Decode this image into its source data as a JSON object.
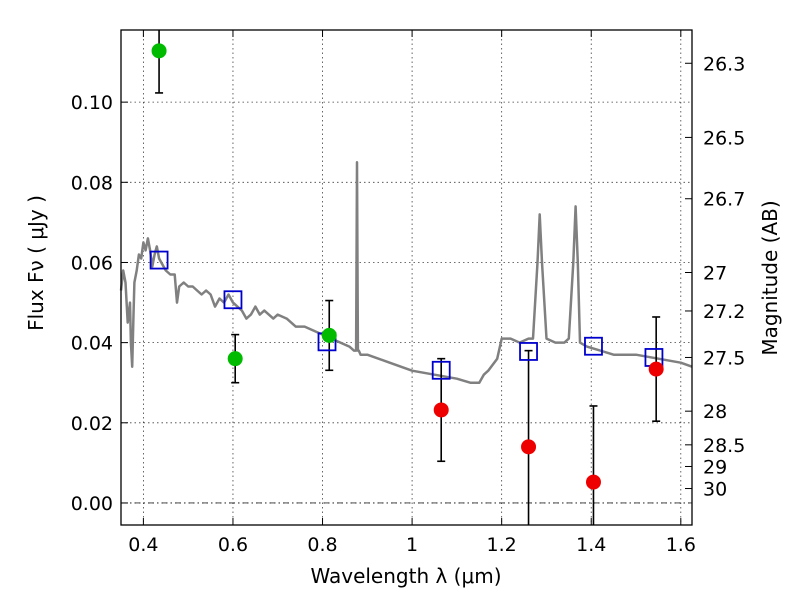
{
  "chart_data": {
    "type": "scatter",
    "xlabel": "Wavelength  λ (μm)",
    "ylabel": "Flux  Fν  ( μJy )",
    "ylabel2": "Magnitude (AB)",
    "xlim": [
      0.35,
      1.625
    ],
    "ylim": [
      -0.0055,
      0.118
    ],
    "x_ticks": [
      0.4,
      0.6,
      0.8,
      1.0,
      1.2,
      1.4,
      1.6
    ],
    "x_tick_labels": [
      "0.4",
      "0.6",
      "0.8",
      "1",
      "1.2",
      "1.4",
      "1.6"
    ],
    "y_ticks": [
      0.0,
      0.02,
      0.04,
      0.06,
      0.08,
      0.1
    ],
    "y_tick_labels": [
      "0.00",
      "0.02",
      "0.04",
      "0.06",
      "0.08",
      "0.10"
    ],
    "y2_ticks": [
      {
        "label": "26.3",
        "flux": 0.1097
      },
      {
        "label": "26.5",
        "flux": 0.0912
      },
      {
        "label": "26.7",
        "flux": 0.0759
      },
      {
        "label": "27",
        "flux": 0.0575
      },
      {
        "label": "27.2",
        "flux": 0.0479
      },
      {
        "label": "27.5",
        "flux": 0.0363
      },
      {
        "label": "28",
        "flux": 0.0229
      },
      {
        "label": "28.5",
        "flux": 0.0145
      },
      {
        "label": "29",
        "flux": 0.0091
      },
      {
        "label": "30",
        "flux": 0.0036
      }
    ],
    "grid": true,
    "zero_line": true,
    "series": [
      {
        "kind": "line",
        "color": "#808080",
        "x": [
          0.35,
          0.355,
          0.36,
          0.365,
          0.37,
          0.372,
          0.375,
          0.378,
          0.38,
          0.385,
          0.39,
          0.395,
          0.4,
          0.405,
          0.41,
          0.415,
          0.42,
          0.425,
          0.43,
          0.435,
          0.44,
          0.45,
          0.46,
          0.47,
          0.475,
          0.48,
          0.49,
          0.5,
          0.51,
          0.52,
          0.53,
          0.54,
          0.55,
          0.56,
          0.57,
          0.58,
          0.59,
          0.6,
          0.61,
          0.62,
          0.63,
          0.64,
          0.65,
          0.66,
          0.67,
          0.68,
          0.69,
          0.7,
          0.72,
          0.74,
          0.76,
          0.78,
          0.8,
          0.82,
          0.84,
          0.86,
          0.87,
          0.875,
          0.877,
          0.879,
          0.881,
          0.885,
          0.9,
          0.95,
          1.0,
          1.05,
          1.1,
          1.13,
          1.15,
          1.16,
          1.17,
          1.19,
          1.2,
          1.22,
          1.24,
          1.26,
          1.27,
          1.28,
          1.285,
          1.29,
          1.3,
          1.32,
          1.34,
          1.35,
          1.36,
          1.365,
          1.37,
          1.375,
          1.39,
          1.42,
          1.45,
          1.5,
          1.55,
          1.6,
          1.625
        ],
        "y": [
          0.053,
          0.058,
          0.055,
          0.045,
          0.05,
          0.04,
          0.034,
          0.047,
          0.055,
          0.058,
          0.062,
          0.061,
          0.065,
          0.063,
          0.066,
          0.063,
          0.059,
          0.062,
          0.064,
          0.061,
          0.06,
          0.058,
          0.057,
          0.057,
          0.05,
          0.054,
          0.055,
          0.054,
          0.054,
          0.053,
          0.052,
          0.053,
          0.052,
          0.049,
          0.051,
          0.05,
          0.052,
          0.05,
          0.049,
          0.048,
          0.046,
          0.047,
          0.049,
          0.047,
          0.048,
          0.047,
          0.046,
          0.047,
          0.046,
          0.044,
          0.044,
          0.043,
          0.042,
          0.041,
          0.04,
          0.039,
          0.038,
          0.038,
          0.085,
          0.038,
          0.038,
          0.037,
          0.037,
          0.035,
          0.033,
          0.032,
          0.031,
          0.03,
          0.03,
          0.032,
          0.033,
          0.036,
          0.041,
          0.041,
          0.04,
          0.041,
          0.041,
          0.06,
          0.072,
          0.06,
          0.041,
          0.04,
          0.04,
          0.041,
          0.06,
          0.074,
          0.06,
          0.04,
          0.039,
          0.038,
          0.037,
          0.037,
          0.036,
          0.035,
          0.034
        ]
      },
      {
        "kind": "model_points",
        "marker": "square",
        "color": "#0000cc",
        "x": [
          0.435,
          0.6,
          0.81,
          1.065,
          1.26,
          1.405,
          1.54
        ],
        "y": [
          0.0606,
          0.0507,
          0.0402,
          0.0331,
          0.0378,
          0.0391,
          0.0363
        ]
      },
      {
        "kind": "observed",
        "marker": "circle",
        "color": "#00bb00",
        "x": [
          0.435,
          0.605,
          0.815
        ],
        "y": [
          0.1128,
          0.036,
          0.0418
        ],
        "err": [
          0.0105,
          0.006,
          0.0087
        ]
      },
      {
        "kind": "observed",
        "marker": "circle",
        "color": "#ee0000",
        "x": [
          1.065,
          1.26,
          1.405,
          1.545
        ],
        "y": [
          0.0232,
          0.014,
          0.0052,
          0.0334
        ],
        "err": [
          0.0128,
          0.024,
          0.019,
          0.013
        ]
      }
    ]
  }
}
